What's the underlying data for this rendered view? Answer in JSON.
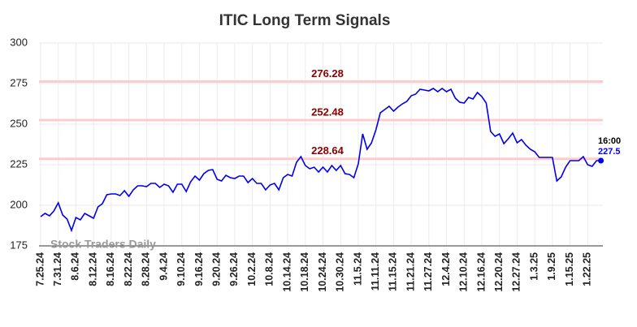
{
  "chart_data": {
    "type": "line",
    "title": "ITIC Long Term Signals",
    "watermark": "Stock Traders Daily",
    "categories": [
      "7.25.24",
      null,
      null,
      null,
      "7.31.24",
      null,
      null,
      null,
      "8.6.24",
      null,
      null,
      null,
      "8.12.24",
      null,
      null,
      null,
      "8.16.24",
      null,
      null,
      null,
      "8.22.24",
      null,
      null,
      null,
      "8.28.24",
      null,
      null,
      null,
      "9.4.24",
      null,
      null,
      null,
      "9.10.24",
      null,
      null,
      null,
      "9.16.24",
      null,
      null,
      null,
      "9.20.24",
      null,
      null,
      null,
      "9.26.24",
      null,
      null,
      null,
      "10.2.24",
      null,
      null,
      null,
      "10.8.24",
      null,
      null,
      null,
      "10.14.24",
      null,
      null,
      null,
      "10.18.24",
      null,
      null,
      null,
      "10.24.24",
      null,
      null,
      null,
      "10.30.24",
      null,
      null,
      null,
      "11.5.24",
      null,
      null,
      null,
      "11.11.24",
      null,
      null,
      null,
      "11.15.24",
      null,
      null,
      null,
      "11.21.24",
      null,
      null,
      null,
      "11.27.24",
      null,
      null,
      null,
      "12.4.24",
      null,
      null,
      null,
      "12.10.24",
      null,
      null,
      null,
      "12.16.24",
      null,
      null,
      null,
      "12.20.24",
      null,
      null,
      null,
      "12.27.24",
      null,
      null,
      null,
      "1.3.25",
      null,
      null,
      null,
      "1.9.25",
      null,
      null,
      null,
      "1.15.25",
      null,
      null,
      null,
      "1.22.25",
      null,
      null,
      null
    ],
    "series": [
      {
        "name": "ITIC",
        "color": "#0000ee",
        "values": [
          193,
          195,
          193.5,
          196.5,
          201.5,
          194,
          191.5,
          184.5,
          192.5,
          191,
          195,
          193.5,
          192,
          199,
          201,
          206.5,
          207,
          207,
          206,
          209,
          205.5,
          209.5,
          212,
          212,
          211.5,
          213.5,
          213.5,
          211,
          213,
          212,
          208,
          213,
          213,
          208.5,
          214.5,
          218,
          215.5,
          219.5,
          221.5,
          222,
          216,
          215,
          218.5,
          217,
          216.5,
          218,
          218,
          214,
          216.5,
          213.5,
          213.5,
          209.5,
          212.5,
          213.5,
          209.5,
          217,
          219,
          218,
          226.5,
          230,
          224.5,
          222.5,
          223.5,
          220.5,
          223.5,
          220.5,
          224.5,
          221.5,
          224.5,
          219.5,
          219,
          217,
          225.5,
          244,
          234.5,
          238.5,
          246.5,
          257,
          259,
          261,
          258,
          260.5,
          262.5,
          264,
          267.5,
          268.5,
          271.5,
          271,
          270.5,
          272,
          270,
          272,
          270,
          271.5,
          266,
          263.5,
          263,
          266.5,
          265.5,
          269.5,
          267,
          263,
          245.5,
          242.5,
          244,
          238,
          241,
          244.5,
          238.5,
          240.5,
          237,
          234.5,
          233,
          229.5,
          229.5,
          229.5,
          229.5,
          215,
          217.5,
          223.5,
          227.5,
          227.5,
          227.5,
          230,
          225,
          224,
          227.5,
          227.5
        ]
      }
    ],
    "reference_lines": [
      276.28,
      252.48,
      228.64
    ],
    "reference_color": "#ffcccc",
    "reference_label_color": "#8b0000",
    "last_time": "16:00",
    "ylim": [
      175,
      300
    ],
    "yticks": [
      175,
      200,
      225,
      250,
      275,
      300
    ],
    "grid": true
  }
}
